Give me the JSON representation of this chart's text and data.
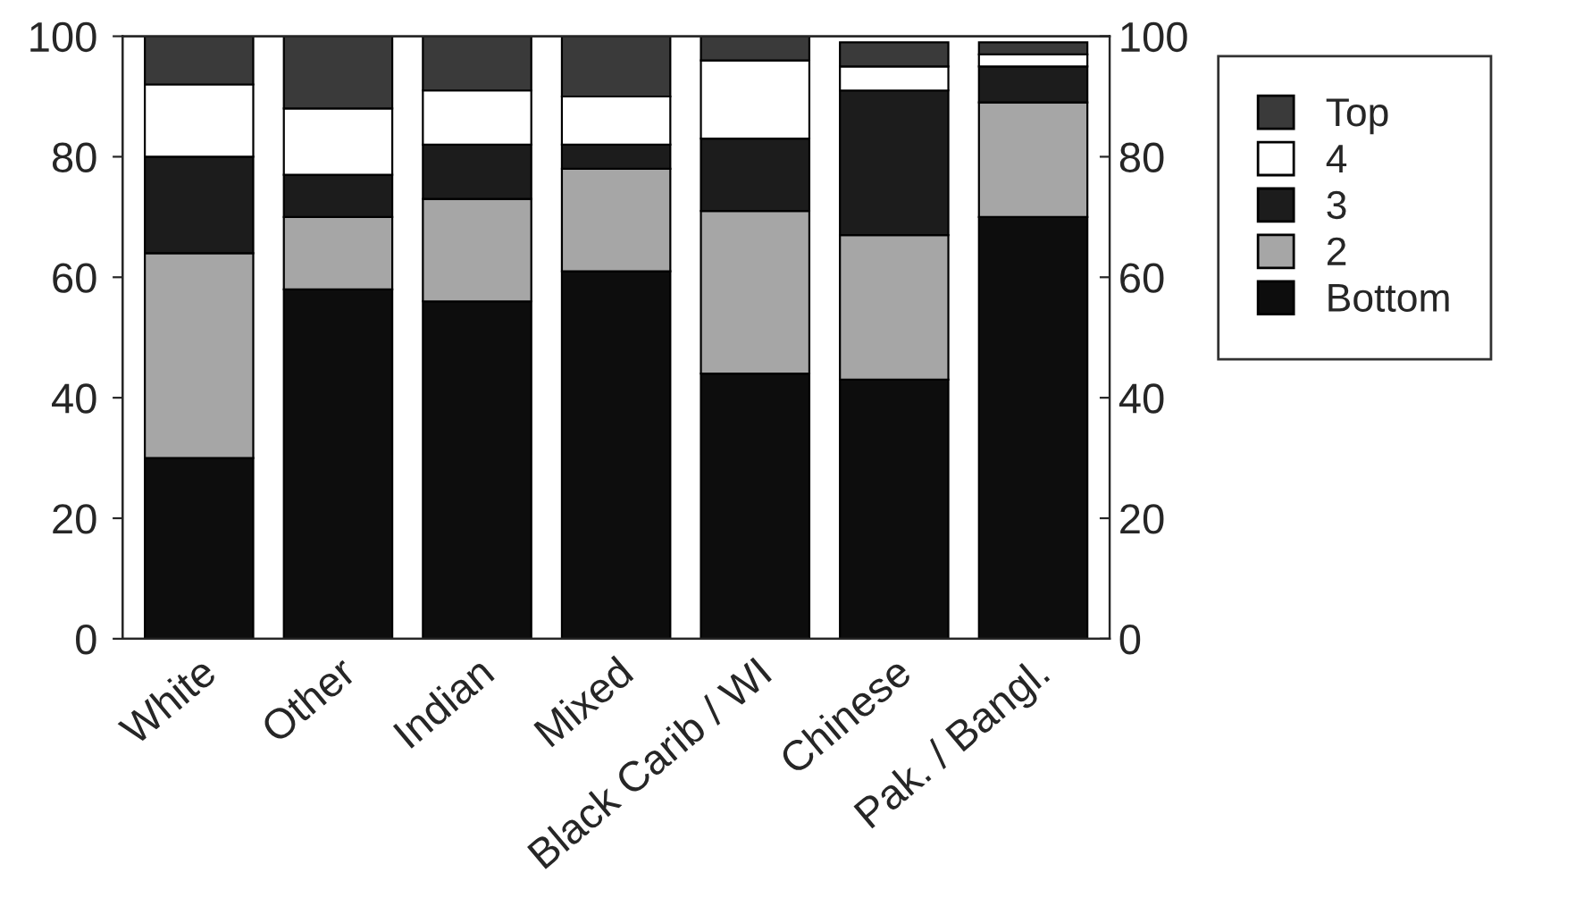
{
  "chart_data": {
    "type": "bar",
    "stacked": true,
    "categories": [
      "White",
      "Other",
      "Indian",
      "Mixed",
      "Black Carib / WI",
      "Chinese",
      "Pak. / Bangl."
    ],
    "series": [
      {
        "name": "Bottom",
        "color": "#0d0d0d",
        "values": [
          30,
          58,
          56,
          61,
          44,
          43,
          70
        ]
      },
      {
        "name": "2",
        "color": "#a6a6a6",
        "values": [
          34,
          12,
          17,
          17,
          27,
          24,
          19
        ]
      },
      {
        "name": "3",
        "color": "#1c1c1c",
        "values": [
          16,
          7,
          9,
          4,
          12,
          24,
          6
        ]
      },
      {
        "name": "4",
        "color": "#ffffff",
        "values": [
          12,
          11,
          9,
          8,
          13,
          4,
          2
        ]
      },
      {
        "name": "Top",
        "color": "#3a3a3a",
        "values": [
          8,
          12,
          9,
          10,
          4,
          4,
          2
        ]
      }
    ],
    "ylim": [
      0,
      100
    ],
    "yticks": [
      0,
      20,
      40,
      60,
      80,
      100
    ],
    "y2lim": [
      0,
      100
    ],
    "y2ticks": [
      0,
      20,
      40,
      60,
      80,
      100
    ],
    "legend": "right",
    "grid": false
  }
}
